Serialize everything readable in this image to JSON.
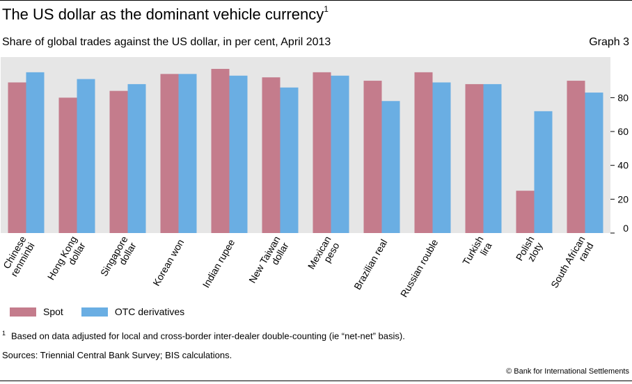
{
  "header": {
    "title": "The US dollar as the dominant vehicle currency",
    "title_note": "1",
    "subtitle": "Share of global trades against the US dollar, in per cent, April 2013",
    "graph_label": "Graph 3"
  },
  "legend": {
    "items": [
      {
        "label": "Spot",
        "color": "#c47c8c"
      },
      {
        "label": "OTC derivatives",
        "color": "#6aaee3"
      }
    ]
  },
  "footnote": {
    "marker": "1",
    "text": "Based on data adjusted for local and cross-border inter-dealer double-counting (ie “net-net” basis)."
  },
  "sources": "Sources: Triennial Central Bank Survey; BIS calculations.",
  "copyright": "© Bank for International Settlements",
  "chart_data": {
    "type": "bar",
    "background": "#e6e6e6",
    "categories": [
      [
        "Chinese",
        "renminbi"
      ],
      [
        "Hong Kong",
        "dollar"
      ],
      [
        "Singapore",
        "dollar"
      ],
      [
        "Korean won"
      ],
      [
        "Indian rupee"
      ],
      [
        "New Taiwan",
        "dollar"
      ],
      [
        "Mexican",
        "peso"
      ],
      [
        "Brazilian real"
      ],
      [
        "Russian rouble"
      ],
      [
        "Turkish",
        "lira"
      ],
      [
        "Polish",
        "zloty"
      ],
      [
        "South African",
        "rand"
      ]
    ],
    "series": [
      {
        "name": "Spot",
        "color": "#c47c8c",
        "values": [
          89,
          80,
          84,
          94,
          97,
          92,
          95,
          90,
          95,
          88,
          25,
          90
        ]
      },
      {
        "name": "OTC derivatives",
        "color": "#6aaee3",
        "values": [
          95,
          91,
          88,
          94,
          93,
          86,
          93,
          78,
          89,
          88,
          72,
          83
        ]
      }
    ],
    "ylim": [
      0,
      104
    ],
    "yticks": [
      0,
      20,
      40,
      60,
      80
    ],
    "y_axis_position": "right",
    "grid": false
  }
}
